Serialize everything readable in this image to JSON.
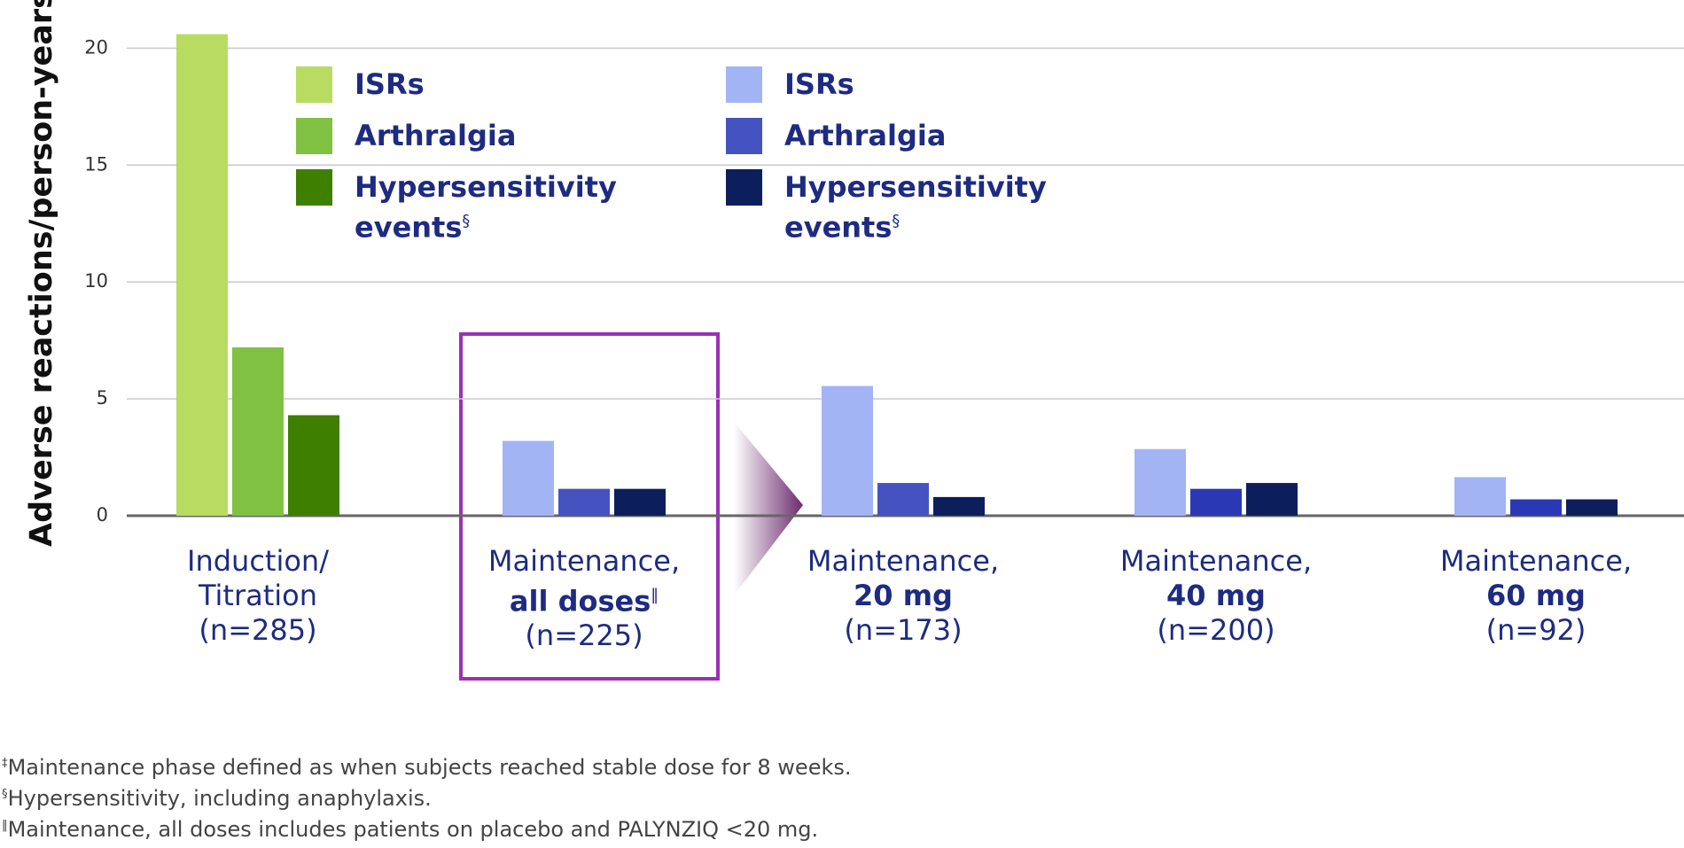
{
  "chart_data": {
    "type": "bar",
    "y_label": "Adverse reactions/person-years",
    "ylim": [
      0,
      21
    ],
    "yticks": [
      0,
      5,
      10,
      15,
      20
    ],
    "grid": true,
    "categories": [
      {
        "label": [
          "Induction/",
          "Titration",
          "(n=285)"
        ]
      },
      {
        "label": [
          "Maintenance,",
          "all doses",
          "(n=225)"
        ],
        "note": "‖"
      },
      {
        "label": [
          "Maintenance,",
          "20 mg",
          "(n=173)"
        ]
      },
      {
        "label": [
          "Maintenance,",
          "40 mg",
          "(n=200)"
        ]
      },
      {
        "label": [
          "Maintenance,",
          "60 mg",
          "(n=92)"
        ]
      }
    ],
    "series": [
      {
        "name": "ISRs",
        "colors": [
          "#b8dc62",
          "#a3b4f5",
          "#a3b4f5",
          "#a3b4f5",
          "#a3b4f5"
        ],
        "values": [
          20.6,
          3.2,
          5.55,
          2.85,
          1.65
        ]
      },
      {
        "name": "Arthralgia",
        "colors": [
          "#80c142",
          "#4553c0",
          "#4553c0",
          "#2a38b6",
          "#2a38b6"
        ],
        "values": [
          7.2,
          1.15,
          1.4,
          1.15,
          0.7
        ]
      },
      {
        "name": "Hypersensitivity events",
        "footnote_mark": "§",
        "colors": [
          "#3f7f00",
          "#0c1f5c",
          "#0c1f5c",
          "#0c1f5c",
          "#0c1f5c"
        ],
        "values": [
          4.3,
          1.15,
          0.8,
          1.4,
          0.7
        ]
      }
    ],
    "footnotes": [
      {
        "mark": "‡",
        "text": "Maintenance phase defined as when subjects reached stable dose for 8 weeks."
      },
      {
        "mark": "§",
        "text": "Hypersensitivity, including anaphylaxis."
      },
      {
        "mark": "‖",
        "text": "Maintenance, all doses includes patients on placebo and PALYNZIQ <20 mg."
      }
    ]
  }
}
